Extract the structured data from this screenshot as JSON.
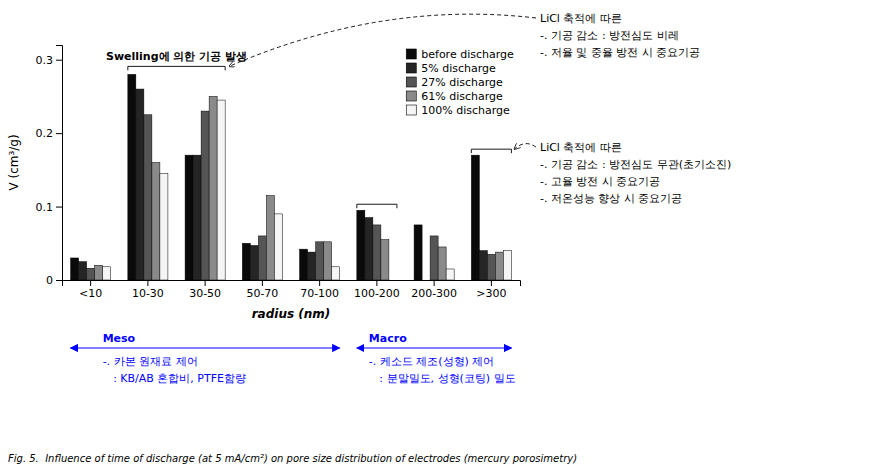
{
  "chart_data": {
    "type": "bar",
    "categories": [
      "<10",
      "10-30",
      "30-50",
      "50-70",
      "70-100",
      "100-200",
      "200-300",
      ">300"
    ],
    "series": [
      {
        "name": "before discharge",
        "color": "#0a0a0a",
        "values": [
          0.03,
          0.28,
          0.17,
          0.05,
          0.042,
          0.095,
          0.075,
          0.17
        ]
      },
      {
        "name": "5% discharge",
        "color": "#252525",
        "values": [
          0.025,
          0.26,
          0.17,
          0.047,
          0.038,
          0.085,
          0.0,
          0.04
        ]
      },
      {
        "name": "27% discharge",
        "color": "#555555",
        "values": [
          0.016,
          0.225,
          0.23,
          0.06,
          0.052,
          0.075,
          0.06,
          0.035
        ]
      },
      {
        "name": "61% discharge",
        "color": "#8a8a8a",
        "values": [
          0.02,
          0.16,
          0.25,
          0.115,
          0.052,
          0.055,
          0.045,
          0.038
        ]
      },
      {
        "name": "100% discharge",
        "color": "#f5f5f5",
        "values": [
          0.018,
          0.145,
          0.245,
          0.09,
          0.018,
          0.0,
          0.015,
          0.04
        ]
      }
    ],
    "xlabel": "radius (nm)",
    "ylabel": "V (cm³/g)",
    "ylim": [
      0,
      0.32
    ],
    "yticks": [
      0,
      0.1,
      0.2,
      0.3
    ],
    "grid": false,
    "legend": "upper right",
    "annotations": [
      "Swelling에 의한 기공 발생",
      "LiCl 축적에 따른",
      "-. 기공 감소 : 방전심도 비레",
      "-. 저율 및 중율 방전 시 중요기공",
      "LiCl 축적에 따른",
      "-. 기공 감소 : 방전심도 무관(초기소진)",
      "-. 고율 방전 시 중요기공",
      "-. 저온성능 향상 시 중요기공",
      "Meso",
      "-. 카본 원재료 제어",
      "   : KB/AB 혼합비, PTFE함량",
      "Macro",
      "-. 케소드 제조(성형) 제어",
      "   : 분말밀도, 성형(코팅) 밀도",
      "Fig. 5.  Influence of time of discharge (at 5 mA/cm²) on pore size distribution of electrodes (mercury porosimetry)"
    ]
  }
}
